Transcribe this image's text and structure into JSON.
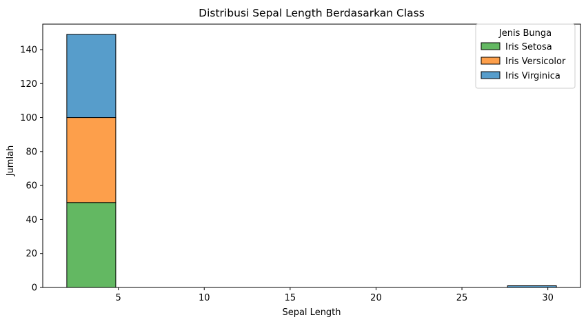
{
  "chart_data": {
    "type": "bar",
    "stacked": true,
    "title": "Distribusi Sepal Length Berdasarkan Class",
    "xlabel": "Sepal Length",
    "ylabel": "Jumlah",
    "xlim": [
      0.6,
      31.9
    ],
    "ylim": [
      0,
      155
    ],
    "xticks": [
      5,
      10,
      15,
      20,
      25,
      30
    ],
    "yticks": [
      0,
      20,
      40,
      60,
      80,
      100,
      120,
      140
    ],
    "bins": [
      [
        2.0,
        4.85
      ],
      [
        4.85,
        7.7
      ],
      [
        7.7,
        10.55
      ],
      [
        10.55,
        13.4
      ],
      [
        13.4,
        16.25
      ],
      [
        16.25,
        19.1
      ],
      [
        19.1,
        21.95
      ],
      [
        21.95,
        24.8
      ],
      [
        24.8,
        27.65
      ],
      [
        27.65,
        30.5
      ]
    ],
    "series": [
      {
        "name": "Iris Setosa",
        "color": "#63b862",
        "values": [
          50,
          0,
          0,
          0,
          0,
          0,
          0,
          0,
          0,
          0
        ]
      },
      {
        "name": "Iris Versicolor",
        "color": "#fd9f4b",
        "values": [
          50,
          0,
          0,
          0,
          0,
          0,
          0,
          0,
          0,
          0
        ]
      },
      {
        "name": "Iris Virginica",
        "color": "#579dcb",
        "values": [
          49,
          0,
          0,
          0,
          0,
          0,
          0,
          0,
          0,
          1
        ]
      }
    ],
    "legend": {
      "title": "Jenis Bunga",
      "position": "top-right"
    },
    "grid": false
  }
}
